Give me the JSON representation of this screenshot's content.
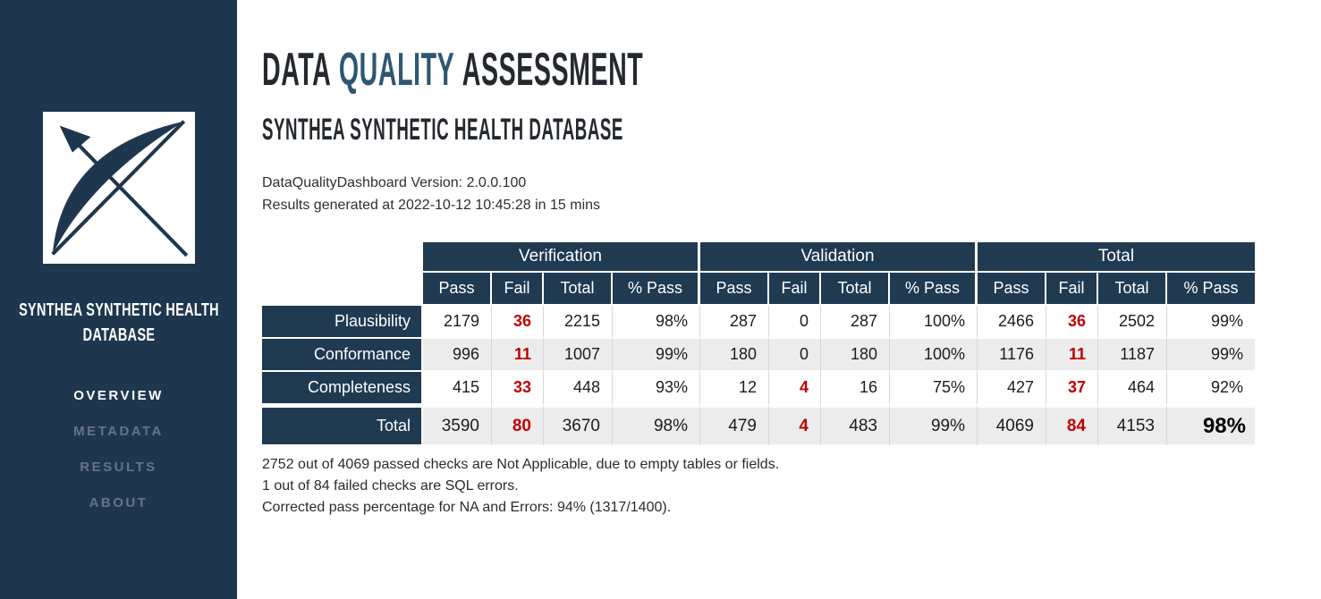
{
  "sidebar": {
    "database_name": "SYNTHEA SYNTHETIC HEALTH DATABASE",
    "logo": "bow-and-arrow-logo",
    "nav": [
      {
        "label": "OVERVIEW",
        "active": true
      },
      {
        "label": "METADATA",
        "active": false
      },
      {
        "label": "RESULTS",
        "active": false
      },
      {
        "label": "ABOUT",
        "active": false
      }
    ]
  },
  "header": {
    "title_part1": "DATA",
    "title_accent": "QUALITY",
    "title_part2": "ASSESSMENT",
    "subtitle": "SYNTHEA SYNTHETIC HEALTH DATABASE",
    "version_line": "DataQualityDashboard Version: 2.0.0.100",
    "generated_line": "Results generated at 2022-10-12 10:45:28 in 15 mins"
  },
  "table": {
    "group_headers": [
      "Verification",
      "Validation",
      "Total"
    ],
    "sub_headers": [
      "Pass",
      "Fail",
      "Total",
      "% Pass"
    ],
    "rows": [
      {
        "label": "Plausibility",
        "cells": [
          "2179",
          "36",
          "2215",
          "98%",
          "287",
          "0",
          "287",
          "100%",
          "2466",
          "36",
          "2502",
          "99%"
        ]
      },
      {
        "label": "Conformance",
        "cells": [
          "996",
          "11",
          "1007",
          "99%",
          "180",
          "0",
          "180",
          "100%",
          "1176",
          "11",
          "1187",
          "99%"
        ]
      },
      {
        "label": "Completeness",
        "cells": [
          "415",
          "33",
          "448",
          "93%",
          "12",
          "4",
          "16",
          "75%",
          "427",
          "37",
          "464",
          "92%"
        ]
      },
      {
        "label": "Total",
        "cells": [
          "3590",
          "80",
          "3670",
          "98%",
          "479",
          "4",
          "483",
          "99%",
          "4069",
          "84",
          "4153",
          "98%"
        ]
      }
    ]
  },
  "notes": [
    "2752 out of 4069 passed checks are Not Applicable, due to empty tables or fields.",
    "1 out of 84 failed checks are SQL errors.",
    "Corrected pass percentage for NA and Errors: 94% (1317/1400)."
  ],
  "colors": {
    "navy": "#1f374e",
    "table_navy": "#203a52",
    "accent_blue": "#2d5773",
    "fail_red": "#c00000",
    "row_alt": "#ececec"
  }
}
